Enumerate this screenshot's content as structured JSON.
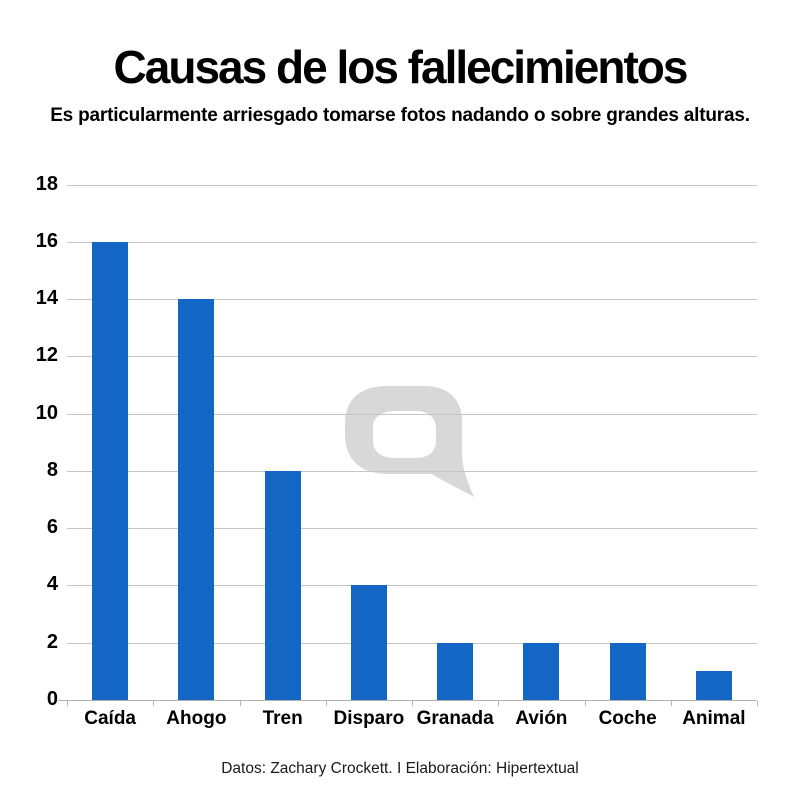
{
  "title": "Causas de los fallecimientos",
  "subtitle": "Es particularmente arriesgado tomarse fotos nadando o sobre grandes alturas.",
  "footer": "Datos: Zachary Crockett. I Elaboración: Hipertextual",
  "watermark": "hipertextual-speech-bubble-logo",
  "colors": {
    "bar": "#1366c4",
    "gridline": "#c5c5c5",
    "axis": "#b3b3b3",
    "watermark": "#d8d8d8",
    "text": "#000000"
  },
  "chart_data": {
    "type": "bar",
    "categories": [
      "Caída",
      "Ahogo",
      "Tren",
      "Disparo",
      "Granada",
      "Avión",
      "Coche",
      "Animal"
    ],
    "values": [
      16,
      14,
      8,
      4,
      2,
      2,
      2,
      1
    ],
    "title": "Causas de los fallecimientos",
    "subtitle": "Es particularmente arriesgado tomarse fotos nadando o sobre grandes alturas.",
    "source": "Datos: Zachary Crockett. I Elaboración: Hipertextual",
    "xlabel": "",
    "ylabel": "",
    "ylim": [
      0,
      18
    ],
    "yticks": [
      0,
      2,
      4,
      6,
      8,
      10,
      12,
      14,
      16,
      18
    ],
    "grid": true,
    "legend": false,
    "bar_color": "#1366c4"
  }
}
